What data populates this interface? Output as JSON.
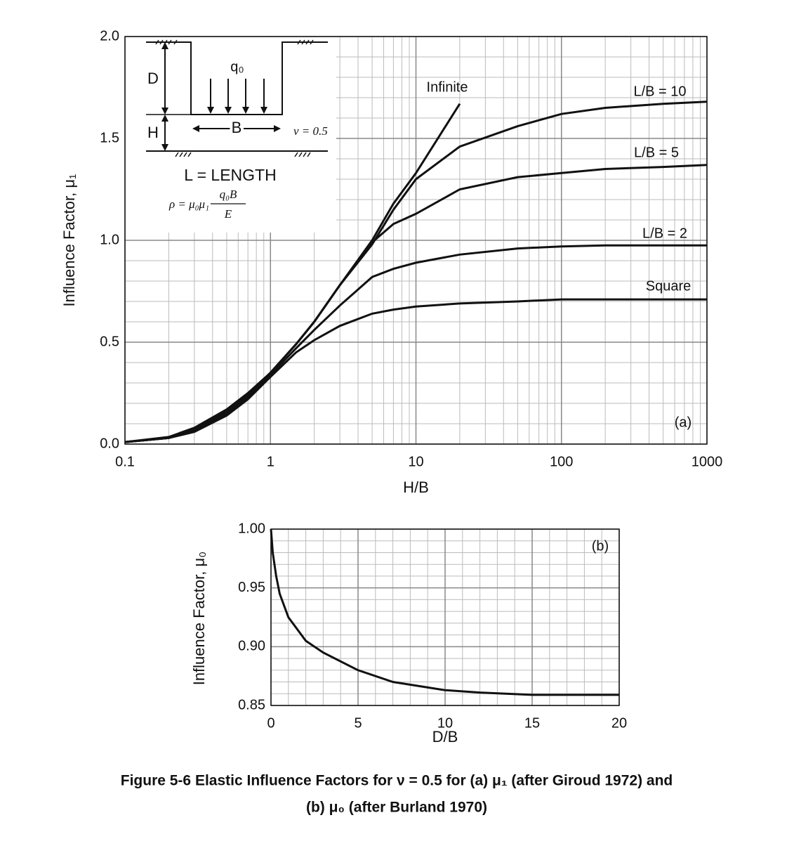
{
  "chart_data": [
    {
      "type": "line",
      "xscale": "log",
      "grid": true,
      "minor_grid": true,
      "xlabel": "H/B",
      "ylabel": "Influence Factor, μ₁",
      "xlim": [
        0.1,
        1000
      ],
      "xticks": [
        0.1,
        1,
        10,
        100,
        1000
      ],
      "ylim": [
        0,
        2
      ],
      "yticks": [
        {
          "value": 0,
          "label": "0.0"
        },
        0.5,
        {
          "value": 1,
          "label": "1.0"
        },
        1.5,
        {
          "value": 2,
          "label": "2.0"
        }
      ],
      "x": [
        0.1,
        0.2,
        0.3,
        0.5,
        0.7,
        1,
        1.5,
        2,
        3,
        5,
        7,
        10,
        20,
        50,
        100,
        200,
        500,
        1000
      ],
      "series": [
        {
          "name": "Infinite",
          "color": "#111111",
          "values": [
            0.01,
            0.035,
            0.08,
            0.17,
            0.25,
            0.35,
            0.49,
            0.6,
            0.78,
            1.0,
            1.18,
            1.33,
            1.67,
            null,
            null,
            null,
            null,
            null
          ]
        },
        {
          "name": "L/B = 10",
          "color": "#111111",
          "values": [
            0.01,
            0.03,
            0.07,
            0.16,
            0.24,
            0.35,
            0.49,
            0.6,
            0.78,
            0.98,
            1.15,
            1.3,
            1.46,
            1.56,
            1.62,
            1.65,
            1.67,
            1.68
          ]
        },
        {
          "name": "L/B = 5",
          "color": "#111111",
          "values": [
            0.01,
            0.03,
            0.07,
            0.16,
            0.24,
            0.35,
            0.49,
            0.6,
            0.78,
            0.99,
            1.08,
            1.13,
            1.25,
            1.31,
            1.33,
            1.35,
            1.36,
            1.37
          ]
        },
        {
          "name": "L/B = 2",
          "color": "#111111",
          "values": [
            0.01,
            0.03,
            0.065,
            0.15,
            0.23,
            0.34,
            0.47,
            0.56,
            0.68,
            0.82,
            0.86,
            0.89,
            0.93,
            0.96,
            0.97,
            0.975,
            0.975,
            0.975
          ]
        },
        {
          "name": "Square",
          "color": "#111111",
          "values": [
            0.01,
            0.03,
            0.06,
            0.14,
            0.22,
            0.33,
            0.45,
            0.51,
            0.58,
            0.64,
            0.66,
            0.675,
            0.69,
            0.7,
            0.71,
            0.71,
            0.71,
            0.71
          ]
        }
      ],
      "annotations": [
        "D",
        "q₀",
        "H",
        "B",
        "ν = 0.5",
        "L = LENGTH",
        "ρ = μ₀μ₁",
        "q₀B",
        "E",
        "(a)"
      ]
    },
    {
      "type": "line",
      "xscale": "linear",
      "grid": true,
      "minor_grid": true,
      "xlabel": "D/B",
      "ylabel": "Influence Factor, μ₀",
      "xlim": [
        0,
        20
      ],
      "xticks": [
        0,
        5,
        10,
        15,
        20
      ],
      "ylim": [
        0.85,
        1
      ],
      "yticks": [
        0.85,
        {
          "value": 0.9,
          "label": "0.90"
        },
        0.95,
        {
          "value": 1,
          "label": "1.00"
        }
      ],
      "x": [
        0,
        0.1,
        0.3,
        0.5,
        1,
        2,
        3,
        5,
        7,
        10,
        12,
        15,
        20
      ],
      "values": [
        1.0,
        0.98,
        0.96,
        0.945,
        0.925,
        0.905,
        0.895,
        0.88,
        0.87,
        0.863,
        0.861,
        0.859,
        0.859
      ],
      "color": "#111111",
      "annotations": [
        "(b)"
      ]
    }
  ],
  "caption": [
    "Figure 5-6    Elastic Influence Factors for ν = 0.5 for (a) μ₁ (after Giroud 1972) and",
    "(b) μ₀ (after Burland 1970)"
  ]
}
